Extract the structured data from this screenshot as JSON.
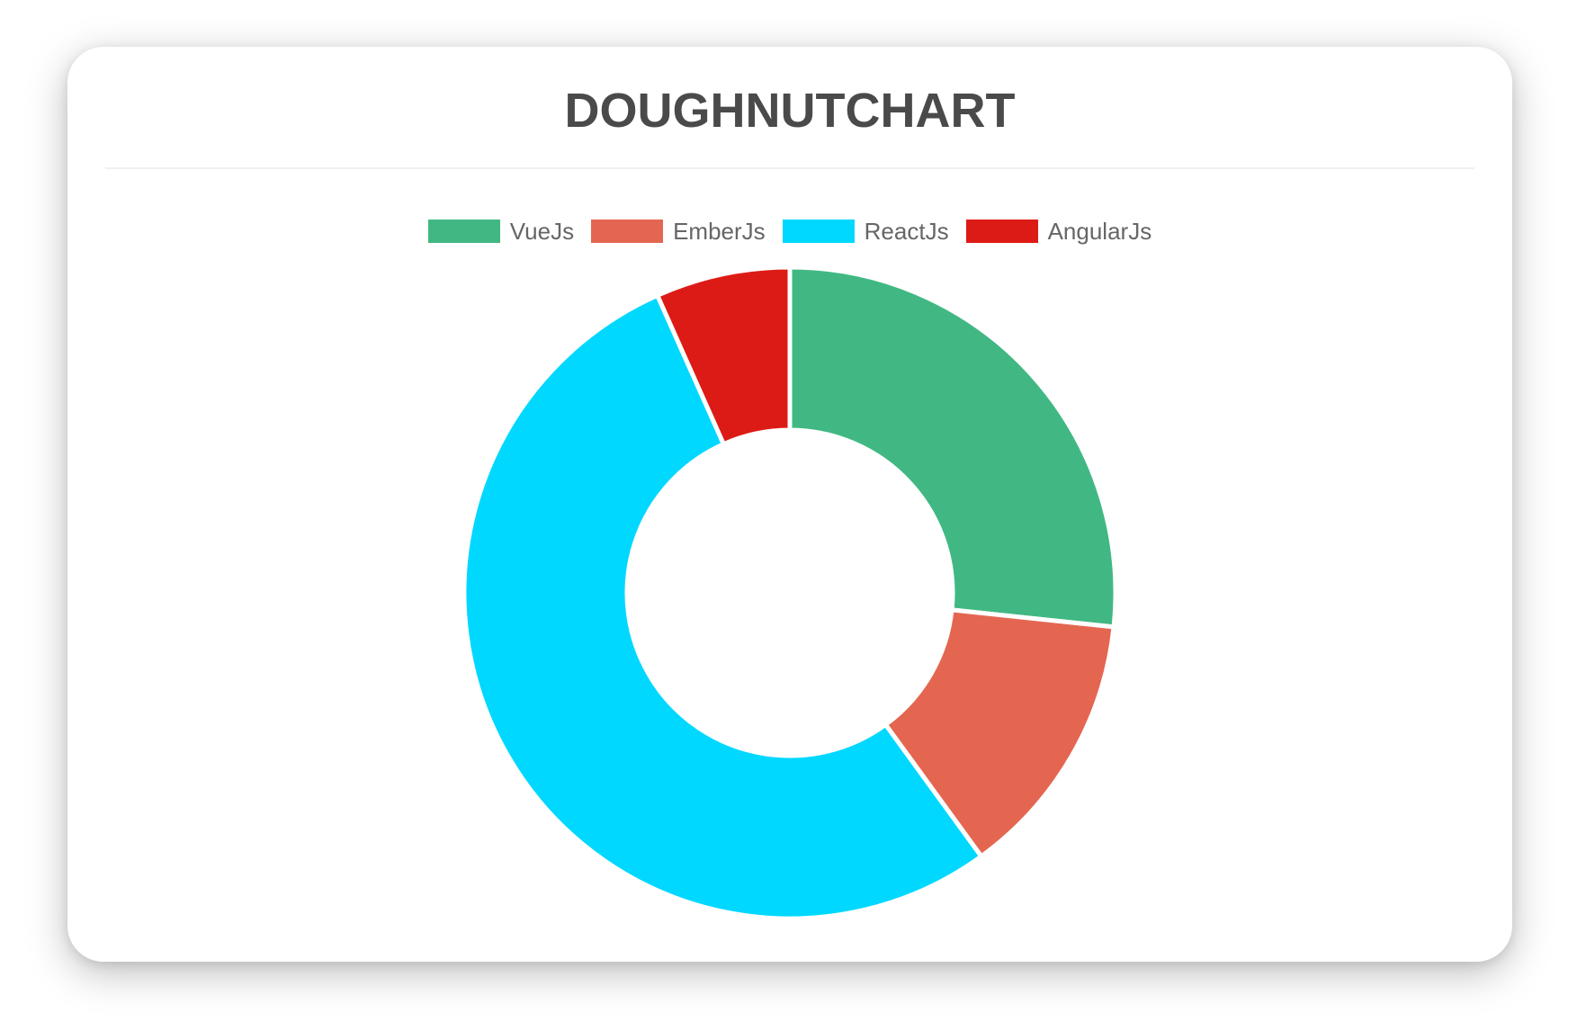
{
  "card": {
    "title": "DOUGHNUTCHART"
  },
  "chart_data": {
    "type": "doughnut",
    "title": "DOUGHNUTCHART",
    "categories": [
      "VueJs",
      "EmberJs",
      "ReactJs",
      "AngularJs"
    ],
    "values": [
      40,
      20,
      80,
      10
    ],
    "colors": [
      "#41B883",
      "#E46651",
      "#00D8FF",
      "#DD1B16"
    ],
    "total": 150,
    "percentages": [
      26.7,
      13.3,
      53.3,
      6.7
    ],
    "legend_position": "top",
    "cutout_percent": 50,
    "rotation_deg": 0,
    "border_color": "#ffffff",
    "title_color": "#4a4a4a",
    "legend_text_color": "#666666"
  }
}
